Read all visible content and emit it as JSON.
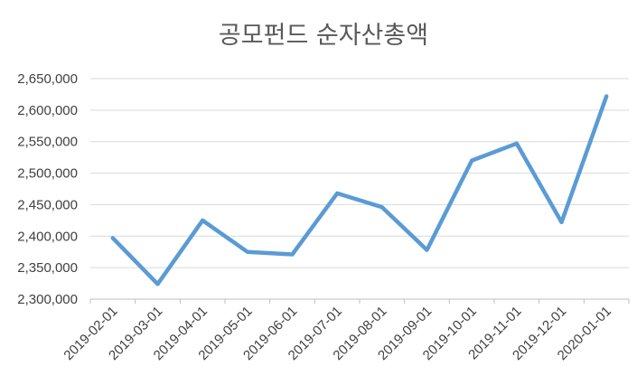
{
  "chart_data": {
    "type": "line",
    "title": "공모펀드 순자산총액",
    "xlabel": "",
    "ylabel": "",
    "categories": [
      "2019-02-01",
      "2019-03-01",
      "2019-04-01",
      "2019-05-01",
      "2019-06-01",
      "2019-07-01",
      "2019-08-01",
      "2019-09-01",
      "2019-10-01",
      "2019-11-01",
      "2019-12-01",
      "2020-01-01"
    ],
    "series": [
      {
        "color": "#5B9BD5",
        "values": [
          2397000,
          2324000,
          2425000,
          2375000,
          2371000,
          2468000,
          2446000,
          2378000,
          2520000,
          2547000,
          2422000,
          2622000
        ]
      }
    ],
    "ylim": [
      2300000,
      2650000
    ],
    "y_ticks": [
      "2,300,000",
      "2,350,000",
      "2,400,000",
      "2,450,000",
      "2,500,000",
      "2,550,000",
      "2,600,000",
      "2,650,000"
    ],
    "grid": true,
    "legend": "none"
  }
}
